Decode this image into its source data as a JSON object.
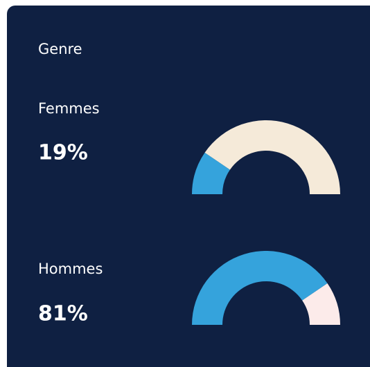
{
  "title": "Genre",
  "chart_data": [
    {
      "type": "gauge",
      "title": "Femmes",
      "values": [
        19
      ],
      "value_labels": [
        "19%"
      ],
      "color": "#35a3dc",
      "track_color": "#f5ead9",
      "ylim": [
        0,
        100
      ]
    },
    {
      "type": "gauge",
      "title": "Hommes",
      "values": [
        81
      ],
      "value_labels": [
        "81%"
      ],
      "color": "#35a3dc",
      "track_color": "#fcebea",
      "ylim": [
        0,
        100
      ]
    }
  ]
}
